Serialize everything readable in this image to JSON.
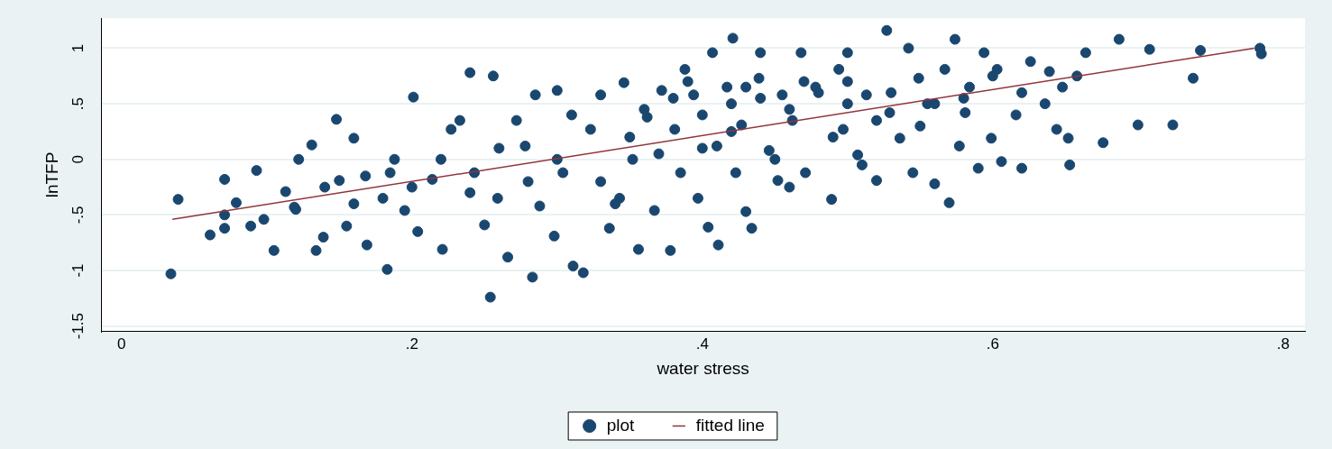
{
  "chart_data": {
    "type": "scatter",
    "xlabel": "water stress",
    "ylabel": "lnTFP",
    "xlim": [
      -0.014,
      0.815
    ],
    "ylim": [
      -1.55,
      1.27
    ],
    "xticks": [
      {
        "value": 0,
        "label": "0"
      },
      {
        "value": 0.2,
        "label": ".2"
      },
      {
        "value": 0.4,
        "label": ".4"
      },
      {
        "value": 0.6,
        "label": ".6"
      },
      {
        "value": 0.8,
        "label": ".8"
      }
    ],
    "yticks": [
      {
        "value": -1.5,
        "label": "-1.5"
      },
      {
        "value": -1,
        "label": "-1"
      },
      {
        "value": -0.5,
        "label": "-.5"
      },
      {
        "value": 0,
        "label": "0"
      },
      {
        "value": 0.5,
        "label": ".5"
      },
      {
        "value": 1,
        "label": "1"
      }
    ],
    "grid": "y",
    "legend": "bottom",
    "series": [
      {
        "name": "plot",
        "color": "#1a476f",
        "marker": "circle",
        "x": [
          0.034,
          0.039,
          0.061,
          0.071,
          0.071,
          0.071,
          0.079,
          0.089,
          0.093,
          0.098,
          0.105,
          0.113,
          0.119,
          0.122,
          0.131,
          0.134,
          0.139,
          0.148,
          0.15,
          0.155,
          0.16,
          0.168,
          0.169,
          0.183,
          0.185,
          0.188,
          0.195,
          0.201,
          0.204,
          0.214,
          0.221,
          0.227,
          0.233,
          0.24,
          0.243,
          0.25,
          0.254,
          0.256,
          0.259,
          0.266,
          0.272,
          0.278,
          0.283,
          0.285,
          0.288,
          0.298,
          0.3,
          0.304,
          0.311,
          0.318,
          0.323,
          0.33,
          0.336,
          0.343,
          0.346,
          0.352,
          0.356,
          0.362,
          0.367,
          0.372,
          0.378,
          0.381,
          0.385,
          0.388,
          0.394,
          0.397,
          0.404,
          0.407,
          0.41,
          0.411,
          0.417,
          0.421,
          0.423,
          0.427,
          0.43,
          0.434,
          0.439,
          0.44,
          0.446,
          0.452,
          0.455,
          0.462,
          0.468,
          0.471,
          0.478,
          0.489,
          0.494,
          0.497,
          0.5,
          0.507,
          0.513,
          0.52,
          0.527,
          0.529,
          0.536,
          0.542,
          0.545,
          0.549,
          0.555,
          0.56,
          0.567,
          0.57,
          0.574,
          0.577,
          0.581,
          0.584,
          0.59,
          0.594,
          0.599,
          0.603,
          0.606,
          0.616,
          0.62,
          0.626,
          0.636,
          0.639,
          0.644,
          0.648,
          0.652,
          0.653,
          0.658,
          0.664,
          0.676,
          0.687,
          0.7,
          0.708,
          0.724,
          0.738,
          0.743,
          0.784,
          0.785,
          0.36,
          0.38,
          0.4,
          0.42,
          0.44,
          0.46,
          0.48,
          0.5,
          0.52,
          0.42,
          0.45,
          0.4,
          0.37,
          0.35,
          0.33,
          0.3,
          0.28,
          0.26,
          0.24,
          0.22,
          0.2,
          0.18,
          0.16,
          0.14,
          0.12,
          0.47,
          0.5,
          0.53,
          0.56,
          0.58,
          0.55,
          0.49,
          0.43,
          0.39,
          0.31,
          0.34,
          0.46,
          0.51,
          0.62,
          0.6
        ],
        "values": [
          -1.03,
          -0.36,
          -0.68,
          -0.62,
          -0.5,
          -0.18,
          -0.39,
          -0.6,
          -0.1,
          -0.54,
          -0.82,
          -0.29,
          -0.43,
          0,
          0.13,
          -0.82,
          -0.7,
          0.36,
          -0.19,
          -0.6,
          0.19,
          -0.15,
          -0.77,
          -0.99,
          -0.12,
          0,
          -0.46,
          0.56,
          -0.65,
          -0.18,
          -0.81,
          0.27,
          0.35,
          0.78,
          -0.12,
          -0.59,
          -1.24,
          0.75,
          -0.35,
          -0.88,
          0.35,
          0.12,
          -1.06,
          0.58,
          -0.42,
          -0.69,
          0.62,
          -0.12,
          -0.96,
          -1.02,
          0.27,
          0.58,
          -0.62,
          -0.35,
          0.69,
          0,
          -0.81,
          0.38,
          -0.46,
          0.62,
          -0.82,
          0.27,
          -0.12,
          0.81,
          0.58,
          -0.35,
          -0.61,
          0.96,
          0.12,
          -0.77,
          0.65,
          1.09,
          -0.12,
          0.31,
          -0.47,
          -0.62,
          0.73,
          0.96,
          0.08,
          -0.19,
          0.58,
          0.35,
          0.96,
          -0.12,
          0.65,
          -0.36,
          0.81,
          0.27,
          0.96,
          0.04,
          0.58,
          -0.19,
          1.16,
          0.42,
          0.19,
          1,
          -0.12,
          0.73,
          0.5,
          -0.22,
          0.81,
          -0.39,
          1.08,
          0.12,
          0.42,
          0.65,
          -0.08,
          0.96,
          0.19,
          0.81,
          -0.02,
          0.4,
          -0.08,
          0.88,
          0.5,
          0.79,
          0.27,
          0.65,
          0.19,
          -0.05,
          0.75,
          0.96,
          0.15,
          1.08,
          0.31,
          0.99,
          0.31,
          0.73,
          0.98,
          1,
          0.95,
          0.45,
          0.55,
          0.4,
          0.5,
          0.55,
          0.45,
          0.6,
          0.5,
          0.35,
          0.25,
          0,
          0.1,
          0.05,
          0.2,
          -0.2,
          0,
          -0.2,
          0.1,
          -0.3,
          0,
          -0.25,
          -0.35,
          -0.4,
          -0.25,
          -0.45,
          0.7,
          0.7,
          0.6,
          0.5,
          0.55,
          0.3,
          0.2,
          0.65,
          0.7,
          0.4,
          -0.4,
          -0.25,
          -0.05,
          0.6,
          0.75
        ]
      },
      {
        "name": "fitted line",
        "type": "line",
        "color": "#90353b",
        "marker": "none",
        "x": [
          0.035,
          0.78
        ],
        "values": [
          -0.54,
          1
        ]
      }
    ]
  }
}
